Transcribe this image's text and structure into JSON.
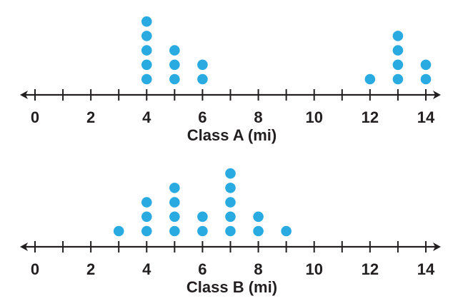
{
  "chart_data": [
    {
      "type": "dot-plot",
      "xlabel": "Class A (mi)",
      "xlim": [
        0,
        14
      ],
      "tick_step": 1,
      "tick_labels": [
        "0",
        "2",
        "4",
        "6",
        "8",
        "10",
        "12",
        "14"
      ],
      "values": [
        4,
        4,
        4,
        4,
        4,
        5,
        5,
        5,
        6,
        6,
        12,
        13,
        13,
        13,
        13,
        14,
        14
      ],
      "counts": {
        "4": 5,
        "5": 3,
        "6": 2,
        "12": 1,
        "13": 4,
        "14": 2
      },
      "dot_color": "#29abe2",
      "axis_color": "#231f20"
    },
    {
      "type": "dot-plot",
      "xlabel": "Class B (mi)",
      "xlim": [
        0,
        14
      ],
      "tick_step": 1,
      "tick_labels": [
        "0",
        "2",
        "4",
        "6",
        "8",
        "10",
        "12",
        "14"
      ],
      "values": [
        3,
        4,
        4,
        4,
        5,
        5,
        5,
        5,
        6,
        6,
        7,
        7,
        7,
        7,
        7,
        8,
        8,
        9
      ],
      "counts": {
        "3": 1,
        "4": 3,
        "5": 4,
        "6": 2,
        "7": 5,
        "8": 2,
        "9": 1
      },
      "dot_color": "#29abe2",
      "axis_color": "#231f20"
    }
  ]
}
